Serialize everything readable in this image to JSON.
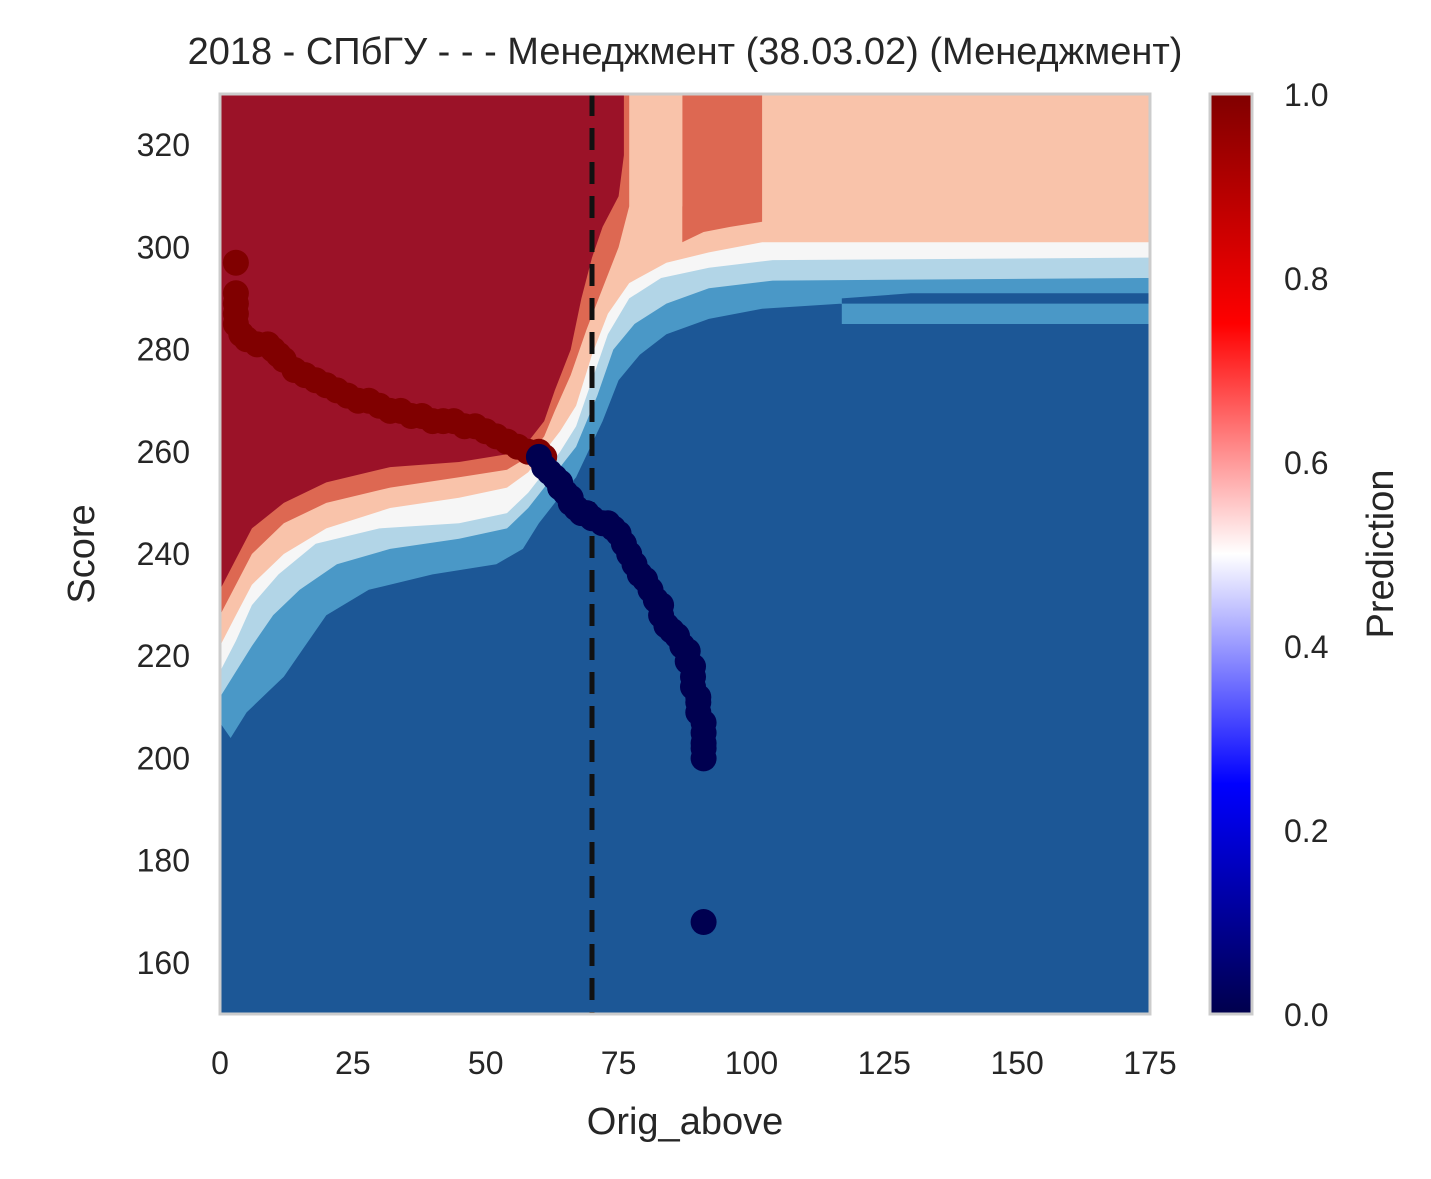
{
  "chart_data": {
    "type": "scatter",
    "title": "2018 - СПбГУ - - - Менеджмент (38.03.02) (Менеджмент)",
    "xlabel": "Orig_above",
    "ylabel": "Score",
    "xlim": [
      0,
      175
    ],
    "ylim": [
      150,
      330
    ],
    "xticks": [
      0,
      25,
      50,
      75,
      100,
      125,
      150,
      175
    ],
    "yticks": [
      160,
      180,
      200,
      220,
      240,
      260,
      280,
      300,
      320
    ],
    "threshold_x": 70,
    "grid": false,
    "background": {
      "type": "filled-contour",
      "levels": [
        {
          "value": 0.07,
          "color": "#1c5796"
        },
        {
          "value": 0.21,
          "color": "#4a98c7"
        },
        {
          "value": 0.36,
          "color": "#b2d5e7"
        },
        {
          "value": 0.5,
          "color": "#f6f6f6"
        },
        {
          "value": 0.64,
          "color": "#f9c3aa"
        },
        {
          "value": 0.79,
          "color": "#dd6852"
        },
        {
          "value": 0.93,
          "color": "#9b1228"
        }
      ]
    },
    "colorbar": {
      "label": "Prediction",
      "range": [
        0,
        1
      ],
      "ticks": [
        "0.0",
        "0.2",
        "0.4",
        "0.6",
        "0.8",
        "1.0"
      ],
      "colormap": "seismic"
    },
    "series": [
      {
        "color": "#800000",
        "prediction": 1,
        "points": [
          [
            3,
            297
          ],
          [
            3,
            291
          ],
          [
            3,
            289
          ],
          [
            3,
            287
          ],
          [
            3,
            285
          ],
          [
            4,
            283
          ],
          [
            5,
            282
          ],
          [
            7,
            281
          ],
          [
            9,
            281
          ],
          [
            10,
            280
          ],
          [
            11,
            279
          ],
          [
            12,
            278
          ],
          [
            14,
            276
          ],
          [
            16,
            275
          ],
          [
            18,
            274
          ],
          [
            20,
            273
          ],
          [
            22,
            272
          ],
          [
            24,
            271
          ],
          [
            26,
            270
          ],
          [
            28,
            270
          ],
          [
            30,
            269
          ],
          [
            32,
            268
          ],
          [
            34,
            268
          ],
          [
            36,
            267
          ],
          [
            38,
            267
          ],
          [
            40,
            266
          ],
          [
            42,
            266
          ],
          [
            44,
            266
          ],
          [
            46,
            265
          ],
          [
            48,
            265
          ],
          [
            50,
            264
          ],
          [
            52,
            263
          ],
          [
            54,
            262
          ],
          [
            56,
            261
          ],
          [
            58,
            260
          ],
          [
            60,
            260
          ],
          [
            61,
            259
          ]
        ]
      },
      {
        "color": "#000050",
        "prediction": 0,
        "points": [
          [
            60,
            259
          ],
          [
            61,
            257
          ],
          [
            62,
            256
          ],
          [
            63,
            255
          ],
          [
            64,
            254
          ],
          [
            64,
            253
          ],
          [
            65,
            252
          ],
          [
            66,
            251
          ],
          [
            66,
            250
          ],
          [
            67,
            249
          ],
          [
            68,
            248
          ],
          [
            69,
            248
          ],
          [
            70,
            247
          ],
          [
            72,
            246
          ],
          [
            73,
            246
          ],
          [
            74,
            245
          ],
          [
            75,
            244
          ],
          [
            76,
            242
          ],
          [
            77,
            240
          ],
          [
            78,
            238
          ],
          [
            79,
            236
          ],
          [
            80,
            235
          ],
          [
            81,
            233
          ],
          [
            82,
            231
          ],
          [
            83,
            230
          ],
          [
            83,
            228
          ],
          [
            84,
            226
          ],
          [
            85,
            225
          ],
          [
            86,
            224
          ],
          [
            87,
            222
          ],
          [
            88,
            221
          ],
          [
            88,
            219
          ],
          [
            89,
            218
          ],
          [
            89,
            216
          ],
          [
            89,
            214
          ],
          [
            90,
            212
          ],
          [
            90,
            211
          ],
          [
            90,
            209
          ],
          [
            91,
            207
          ],
          [
            91,
            205
          ],
          [
            91,
            203
          ],
          [
            91,
            202
          ],
          [
            91,
            200
          ],
          [
            91,
            168
          ]
        ]
      }
    ]
  }
}
